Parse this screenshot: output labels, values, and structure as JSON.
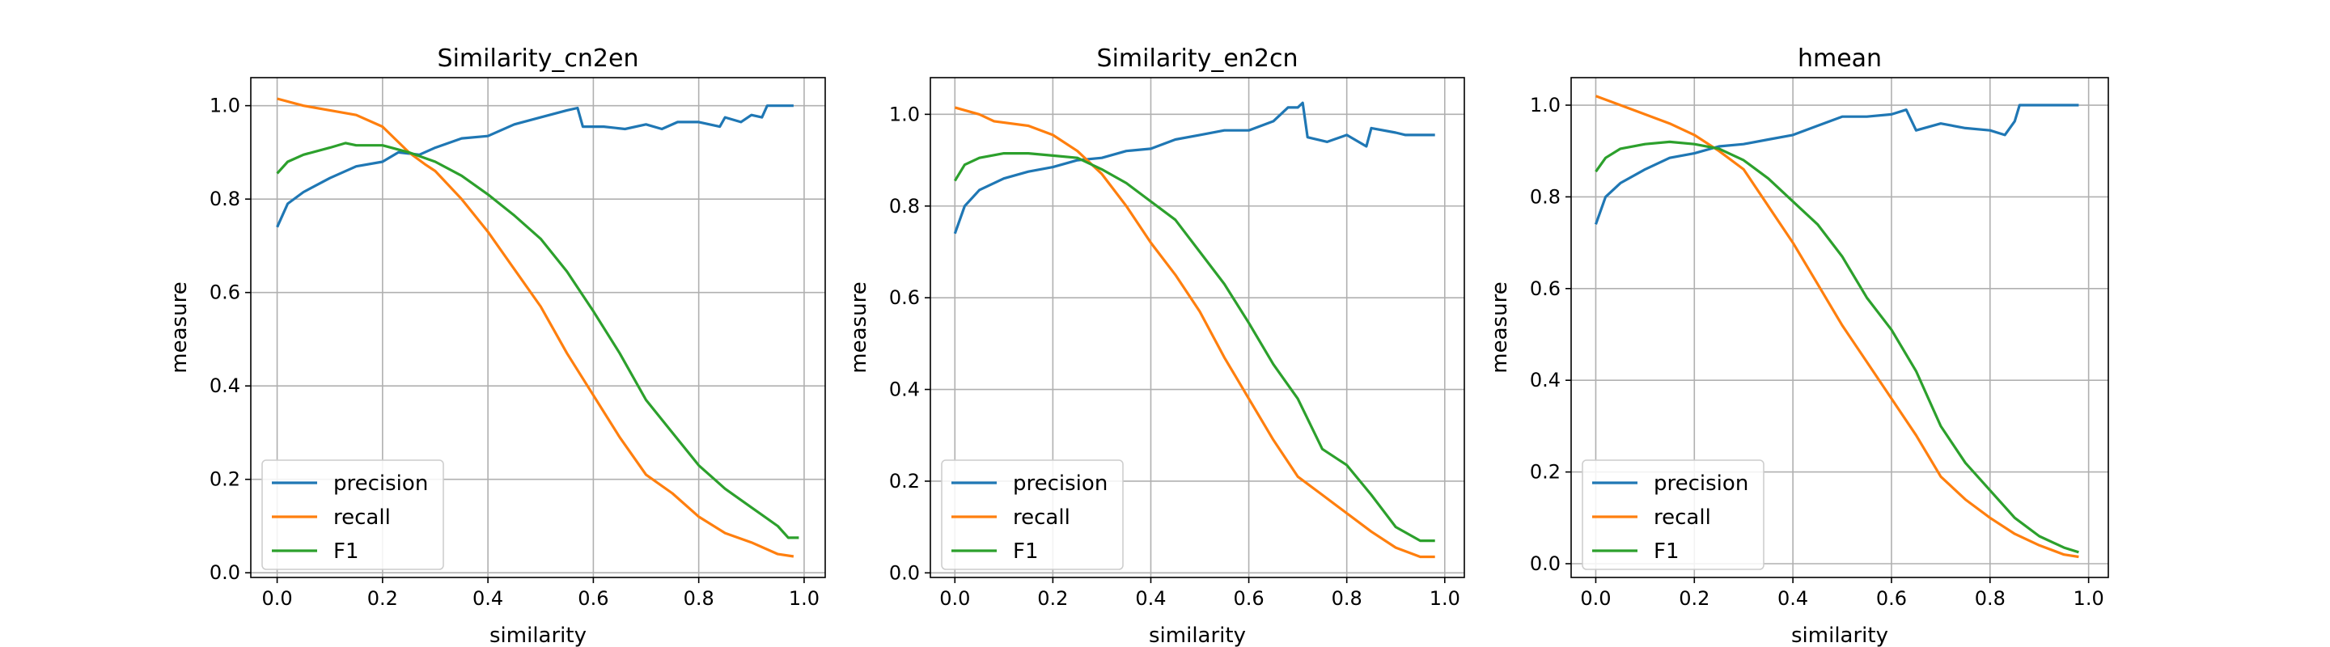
{
  "colors": {
    "precision": "#1f77b4",
    "recall": "#ff7f0e",
    "F1": "#2ca02c",
    "grid": "#b0b0b0"
  },
  "chart_data": [
    {
      "type": "line",
      "title": "Similarity_cn2en",
      "xlabel": "similarity",
      "ylabel": "measure",
      "xlim": [
        -0.05,
        1.04
      ],
      "ylim": [
        -0.01,
        1.06
      ],
      "xticks": [
        "0.0",
        "0.2",
        "0.4",
        "0.6",
        "0.8",
        "1.0"
      ],
      "yticks": [
        "0.0",
        "0.2",
        "0.4",
        "0.6",
        "0.8",
        "1.0"
      ],
      "grid": true,
      "legend": "lower-left",
      "series": [
        {
          "name": "precision",
          "points": [
            [
              0,
              0.74
            ],
            [
              0.02,
              0.79
            ],
            [
              0.05,
              0.815
            ],
            [
              0.1,
              0.845
            ],
            [
              0.15,
              0.87
            ],
            [
              0.2,
              0.88
            ],
            [
              0.23,
              0.9
            ],
            [
              0.27,
              0.895
            ],
            [
              0.3,
              0.91
            ],
            [
              0.35,
              0.93
            ],
            [
              0.4,
              0.935
            ],
            [
              0.45,
              0.96
            ],
            [
              0.5,
              0.975
            ],
            [
              0.55,
              0.99
            ],
            [
              0.57,
              0.995
            ],
            [
              0.58,
              0.955
            ],
            [
              0.62,
              0.955
            ],
            [
              0.66,
              0.95
            ],
            [
              0.7,
              0.96
            ],
            [
              0.73,
              0.95
            ],
            [
              0.76,
              0.965
            ],
            [
              0.8,
              0.965
            ],
            [
              0.84,
              0.955
            ],
            [
              0.85,
              0.975
            ],
            [
              0.88,
              0.965
            ],
            [
              0.9,
              0.98
            ],
            [
              0.92,
              0.975
            ],
            [
              0.93,
              1.0
            ],
            [
              0.98,
              1.0
            ]
          ]
        },
        {
          "name": "recall",
          "points": [
            [
              0,
              1.015
            ],
            [
              0.05,
              1.0
            ],
            [
              0.1,
              0.99
            ],
            [
              0.15,
              0.98
            ],
            [
              0.2,
              0.955
            ],
            [
              0.25,
              0.9
            ],
            [
              0.28,
              0.875
            ],
            [
              0.3,
              0.86
            ],
            [
              0.35,
              0.8
            ],
            [
              0.4,
              0.73
            ],
            [
              0.45,
              0.65
            ],
            [
              0.5,
              0.57
            ],
            [
              0.55,
              0.47
            ],
            [
              0.6,
              0.38
            ],
            [
              0.65,
              0.29
            ],
            [
              0.7,
              0.21
            ],
            [
              0.75,
              0.17
            ],
            [
              0.8,
              0.12
            ],
            [
              0.85,
              0.085
            ],
            [
              0.9,
              0.065
            ],
            [
              0.95,
              0.04
            ],
            [
              0.98,
              0.035
            ]
          ]
        },
        {
          "name": "F1",
          "points": [
            [
              0,
              0.855
            ],
            [
              0.02,
              0.88
            ],
            [
              0.05,
              0.895
            ],
            [
              0.1,
              0.91
            ],
            [
              0.13,
              0.92
            ],
            [
              0.15,
              0.915
            ],
            [
              0.2,
              0.915
            ],
            [
              0.25,
              0.9
            ],
            [
              0.3,
              0.88
            ],
            [
              0.35,
              0.85
            ],
            [
              0.4,
              0.81
            ],
            [
              0.45,
              0.765
            ],
            [
              0.5,
              0.715
            ],
            [
              0.55,
              0.645
            ],
            [
              0.6,
              0.56
            ],
            [
              0.65,
              0.47
            ],
            [
              0.7,
              0.37
            ],
            [
              0.75,
              0.3
            ],
            [
              0.8,
              0.23
            ],
            [
              0.85,
              0.18
            ],
            [
              0.9,
              0.14
            ],
            [
              0.95,
              0.1
            ],
            [
              0.97,
              0.075
            ],
            [
              0.99,
              0.075
            ]
          ]
        }
      ]
    },
    {
      "type": "line",
      "title": "Similarity_en2cn",
      "xlabel": "similarity",
      "ylabel": "measure",
      "xlim": [
        -0.05,
        1.04
      ],
      "ylim": [
        -0.01,
        1.08
      ],
      "xticks": [
        "0.0",
        "0.2",
        "0.4",
        "0.6",
        "0.8",
        "1.0"
      ],
      "yticks": [
        "0.0",
        "0.2",
        "0.4",
        "0.6",
        "0.8",
        "1.0"
      ],
      "grid": true,
      "legend": "lower-left",
      "series": [
        {
          "name": "precision",
          "points": [
            [
              0,
              0.74
            ],
            [
              0.02,
              0.8
            ],
            [
              0.05,
              0.835
            ],
            [
              0.1,
              0.86
            ],
            [
              0.15,
              0.875
            ],
            [
              0.2,
              0.885
            ],
            [
              0.25,
              0.9
            ],
            [
              0.3,
              0.905
            ],
            [
              0.35,
              0.92
            ],
            [
              0.4,
              0.925
            ],
            [
              0.45,
              0.945
            ],
            [
              0.5,
              0.955
            ],
            [
              0.55,
              0.965
            ],
            [
              0.6,
              0.965
            ],
            [
              0.65,
              0.985
            ],
            [
              0.68,
              1.015
            ],
            [
              0.7,
              1.015
            ],
            [
              0.71,
              1.025
            ],
            [
              0.72,
              0.95
            ],
            [
              0.76,
              0.94
            ],
            [
              0.8,
              0.955
            ],
            [
              0.84,
              0.93
            ],
            [
              0.85,
              0.97
            ],
            [
              0.9,
              0.96
            ],
            [
              0.92,
              0.955
            ],
            [
              0.98,
              0.955
            ]
          ]
        },
        {
          "name": "recall",
          "points": [
            [
              0,
              1.015
            ],
            [
              0.05,
              1.0
            ],
            [
              0.08,
              0.985
            ],
            [
              0.15,
              0.975
            ],
            [
              0.2,
              0.955
            ],
            [
              0.25,
              0.92
            ],
            [
              0.3,
              0.87
            ],
            [
              0.35,
              0.8
            ],
            [
              0.4,
              0.72
            ],
            [
              0.45,
              0.65
            ],
            [
              0.5,
              0.57
            ],
            [
              0.55,
              0.47
            ],
            [
              0.6,
              0.38
            ],
            [
              0.65,
              0.29
            ],
            [
              0.7,
              0.21
            ],
            [
              0.75,
              0.17
            ],
            [
              0.8,
              0.13
            ],
            [
              0.85,
              0.09
            ],
            [
              0.9,
              0.055
            ],
            [
              0.95,
              0.035
            ],
            [
              0.98,
              0.035
            ]
          ]
        },
        {
          "name": "F1",
          "points": [
            [
              0,
              0.855
            ],
            [
              0.02,
              0.89
            ],
            [
              0.05,
              0.905
            ],
            [
              0.1,
              0.915
            ],
            [
              0.15,
              0.915
            ],
            [
              0.2,
              0.91
            ],
            [
              0.25,
              0.905
            ],
            [
              0.3,
              0.88
            ],
            [
              0.35,
              0.85
            ],
            [
              0.4,
              0.81
            ],
            [
              0.45,
              0.77
            ],
            [
              0.5,
              0.7
            ],
            [
              0.55,
              0.63
            ],
            [
              0.6,
              0.545
            ],
            [
              0.65,
              0.455
            ],
            [
              0.7,
              0.38
            ],
            [
              0.75,
              0.27
            ],
            [
              0.8,
              0.235
            ],
            [
              0.85,
              0.17
            ],
            [
              0.9,
              0.1
            ],
            [
              0.95,
              0.07
            ],
            [
              0.98,
              0.07
            ]
          ]
        }
      ]
    },
    {
      "type": "line",
      "title": "hmean",
      "xlabel": "similarity",
      "ylabel": "measure",
      "xlim": [
        -0.05,
        1.04
      ],
      "ylim": [
        -0.03,
        1.06
      ],
      "xticks": [
        "0.0",
        "0.2",
        "0.4",
        "0.6",
        "0.8",
        "1.0"
      ],
      "yticks": [
        "0.0",
        "0.2",
        "0.4",
        "0.6",
        "0.8",
        "1.0"
      ],
      "grid": true,
      "legend": "lower-left",
      "series": [
        {
          "name": "precision",
          "points": [
            [
              0,
              0.74
            ],
            [
              0.02,
              0.8
            ],
            [
              0.05,
              0.83
            ],
            [
              0.1,
              0.86
            ],
            [
              0.15,
              0.885
            ],
            [
              0.2,
              0.895
            ],
            [
              0.25,
              0.91
            ],
            [
              0.3,
              0.915
            ],
            [
              0.35,
              0.925
            ],
            [
              0.4,
              0.935
            ],
            [
              0.45,
              0.955
            ],
            [
              0.5,
              0.975
            ],
            [
              0.55,
              0.975
            ],
            [
              0.6,
              0.98
            ],
            [
              0.63,
              0.99
            ],
            [
              0.65,
              0.945
            ],
            [
              0.7,
              0.96
            ],
            [
              0.75,
              0.95
            ],
            [
              0.8,
              0.945
            ],
            [
              0.83,
              0.935
            ],
            [
              0.85,
              0.965
            ],
            [
              0.86,
              1.0
            ],
            [
              0.98,
              1.0
            ]
          ]
        },
        {
          "name": "recall",
          "points": [
            [
              0,
              1.02
            ],
            [
              0.05,
              1.0
            ],
            [
              0.1,
              0.98
            ],
            [
              0.15,
              0.96
            ],
            [
              0.2,
              0.935
            ],
            [
              0.25,
              0.9
            ],
            [
              0.3,
              0.86
            ],
            [
              0.35,
              0.78
            ],
            [
              0.4,
              0.7
            ],
            [
              0.45,
              0.61
            ],
            [
              0.5,
              0.52
            ],
            [
              0.55,
              0.44
            ],
            [
              0.6,
              0.36
            ],
            [
              0.65,
              0.28
            ],
            [
              0.7,
              0.19
            ],
            [
              0.75,
              0.14
            ],
            [
              0.8,
              0.1
            ],
            [
              0.85,
              0.065
            ],
            [
              0.9,
              0.04
            ],
            [
              0.95,
              0.02
            ],
            [
              0.98,
              0.015
            ]
          ]
        },
        {
          "name": "F1",
          "points": [
            [
              0,
              0.855
            ],
            [
              0.02,
              0.885
            ],
            [
              0.05,
              0.905
            ],
            [
              0.1,
              0.915
            ],
            [
              0.15,
              0.92
            ],
            [
              0.2,
              0.915
            ],
            [
              0.25,
              0.905
            ],
            [
              0.3,
              0.88
            ],
            [
              0.35,
              0.84
            ],
            [
              0.4,
              0.79
            ],
            [
              0.45,
              0.74
            ],
            [
              0.5,
              0.67
            ],
            [
              0.55,
              0.58
            ],
            [
              0.6,
              0.51
            ],
            [
              0.65,
              0.42
            ],
            [
              0.7,
              0.3
            ],
            [
              0.75,
              0.22
            ],
            [
              0.8,
              0.16
            ],
            [
              0.85,
              0.1
            ],
            [
              0.9,
              0.06
            ],
            [
              0.95,
              0.035
            ],
            [
              0.98,
              0.025
            ]
          ]
        }
      ]
    }
  ]
}
